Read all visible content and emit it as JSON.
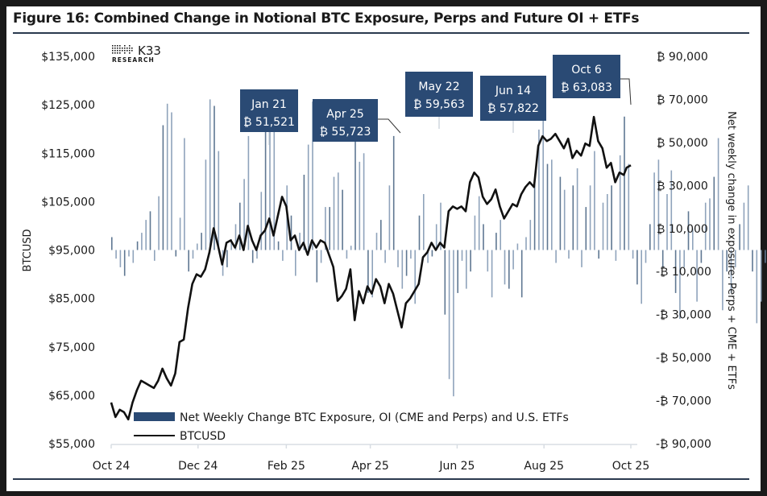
{
  "title": "Figure 16: Combined Change in Notional BTC Exposure, Perps and Future OI + ETFs",
  "logo": {
    "brand": "K33",
    "sub": "RESEARCH"
  },
  "colors": {
    "bar": "#8fa3bb",
    "bar_dark": "#5f7792",
    "line": "#111111",
    "annotation_bg": "#2a4a74",
    "annotation_text": "#ffffff",
    "legend_bar": "#2a4a74",
    "rule": "#2b3a4f",
    "axis": "#d8dde3"
  },
  "chart_data": {
    "type": "bar+line",
    "title": "Figure 16: Combined Change in Notional BTC Exposure, Perps and Future OI + ETFs",
    "xlabel": "",
    "ylabel_left": "BTCUSD",
    "ylabel_right": "Net weekly change in exposure: Perps + CME + ETFs",
    "ylim_left": [
      55000,
      135000
    ],
    "ylim_right": [
      -90000,
      90000
    ],
    "left_ticks": [
      "$135,000",
      "$125,000",
      "$115,000",
      "$105,000",
      "$95,000",
      "$85,000",
      "$75,000",
      "$65,000",
      "$55,000"
    ],
    "left_tick_values": [
      135000,
      125000,
      115000,
      105000,
      95000,
      85000,
      75000,
      65000,
      55000
    ],
    "right_ticks": [
      "₿ 90,000",
      "₿ 70,000",
      "₿ 50,000",
      "₿ 30,000",
      "₿ 10,000",
      "-₿ 10,000",
      "-₿ 30,000",
      "-₿ 50,000",
      "-₿ 70,000",
      "-₿ 90,000"
    ],
    "right_tick_values": [
      90000,
      70000,
      50000,
      30000,
      10000,
      -10000,
      -30000,
      -50000,
      -70000,
      -90000
    ],
    "x_ticks": [
      "Oct 24",
      "Dec 24",
      "Feb 25",
      "Apr 25",
      "Jun 25",
      "Aug 25",
      "Oct 25"
    ],
    "x_tick_days": [
      0,
      61,
      123,
      182,
      243,
      304,
      365
    ],
    "grid": false,
    "legend_position": "bottom-left",
    "legend": [
      {
        "type": "bar",
        "label": "Net Weekly Change BTC Exposure, OI (CME and Perps) and U.S. ETFs"
      },
      {
        "type": "line",
        "label": "BTCUSD"
      }
    ],
    "series": [
      {
        "name": "Net Weekly Change BTC Exposure, OI (CME and Perps) and U.S. ETFs",
        "type": "bar",
        "axis": "right",
        "x_days_start": 0,
        "x_days_step": 3,
        "values": [
          6000,
          -4000,
          -8000,
          -12000,
          -3000,
          -6000,
          4000,
          8000,
          14000,
          18000,
          -5000,
          25000,
          58000,
          68000,
          64000,
          -3000,
          15000,
          52000,
          -10000,
          -4000,
          3000,
          8000,
          42000,
          70000,
          67000,
          46000,
          -12000,
          -8000,
          5000,
          12000,
          22000,
          33000,
          53000,
          -6000,
          -4000,
          27000,
          64000,
          74000,
          60000,
          4000,
          -5000,
          30000,
          16000,
          -12000,
          8000,
          35000,
          49000,
          69000,
          -15000,
          -6000,
          20000,
          20000,
          34000,
          36000,
          28000,
          -4000,
          2000,
          54000,
          41000,
          45000,
          -20000,
          -22000,
          8000,
          14000,
          -6000,
          30000,
          53000,
          -8000,
          -18000,
          -12000,
          -4000,
          -25000,
          16000,
          26000,
          -6000,
          -3000,
          12000,
          22000,
          -30000,
          -60000,
          -68000,
          -20000,
          -5000,
          -18000,
          -10000,
          16000,
          25000,
          12000,
          -10000,
          -22000,
          8000,
          14000,
          -16000,
          -18000,
          -9000,
          3000,
          -22000,
          6000,
          14000,
          32000,
          56000,
          64000,
          40000,
          42000,
          -6000,
          34000,
          28000,
          -4000,
          30000,
          38000,
          -8000,
          20000,
          30000,
          46000,
          -4000,
          22000,
          26000,
          30000,
          -5000,
          44000,
          62000,
          40000,
          -4000,
          -16000,
          -25000,
          -6000,
          12000,
          36000,
          42000,
          -8000,
          26000,
          37000,
          -20000,
          -32000,
          -8000,
          18000,
          10000,
          -24000,
          -6000,
          22000,
          24000,
          34000,
          52000,
          -28000,
          -10000,
          -20000,
          -8000,
          12000,
          22000,
          30000,
          -10000,
          -34000,
          -24000,
          -6000,
          -5000,
          18000,
          21000,
          -16000,
          -26000,
          -4000,
          18000,
          30000,
          40000,
          -8000,
          22000,
          33000,
          15000,
          -30000,
          -40000,
          -20000,
          -6000,
          22000,
          54000,
          62000
        ],
        "unit": "BTC"
      },
      {
        "name": "BTCUSD",
        "type": "line",
        "axis": "left",
        "x_days": [
          0,
          3,
          6,
          9,
          12,
          15,
          18,
          21,
          24,
          27,
          30,
          33,
          36,
          39,
          42,
          45,
          48,
          51,
          54,
          57,
          60,
          63,
          66,
          69,
          72,
          75,
          78,
          81,
          84,
          87,
          90,
          93,
          96,
          99,
          102,
          105,
          108,
          111,
          114,
          117,
          120,
          123,
          126,
          129,
          132,
          135,
          138,
          141,
          144,
          147,
          150,
          153,
          156,
          159,
          162,
          165,
          168,
          171,
          174,
          177,
          180,
          183,
          186,
          189,
          192,
          195,
          198,
          201,
          204,
          207,
          210,
          213,
          216,
          219,
          222,
          225,
          228,
          231,
          234,
          237,
          240,
          243,
          246,
          249,
          252,
          255,
          258,
          261,
          264,
          267,
          270,
          273,
          276,
          279,
          282,
          285,
          288,
          291,
          294,
          297,
          300,
          303,
          306,
          309,
          312,
          315,
          318,
          321,
          324,
          327,
          330,
          333,
          336,
          339,
          342,
          345,
          348,
          351,
          354,
          357,
          360,
          362,
          365
        ],
        "values": [
          63500,
          60500,
          62000,
          61500,
          60000,
          63500,
          66000,
          68000,
          67500,
          67000,
          66500,
          68000,
          70500,
          68500,
          67000,
          69500,
          76000,
          76500,
          83000,
          88000,
          90000,
          89500,
          91000,
          94500,
          99500,
          96000,
          92000,
          96500,
          97000,
          95500,
          98000,
          95000,
          100000,
          97000,
          95000,
          98000,
          99000,
          101500,
          98000,
          102000,
          106000,
          104000,
          97000,
          98000,
          95000,
          96500,
          94000,
          97000,
          95500,
          97000,
          96500,
          94000,
          91500,
          84500,
          85500,
          87000,
          91000,
          80500,
          86500,
          84000,
          87500,
          86000,
          89000,
          87500,
          84000,
          88000,
          86000,
          82500,
          79000,
          84000,
          85000,
          86500,
          88000,
          93500,
          94500,
          96500,
          95000,
          96500,
          95500,
          103000,
          104000,
          103500,
          104000,
          103000,
          109000,
          111000,
          110000,
          106000,
          104500,
          105500,
          107500,
          104000,
          101500,
          103000,
          104500,
          104000,
          106500,
          108000,
          109000,
          108000,
          116500,
          118500,
          117500,
          118000,
          119000,
          117500,
          116000,
          118000,
          114000,
          115500,
          114500,
          117000,
          116500,
          122500,
          117500,
          116000,
          112000,
          113000,
          109000,
          111000,
          110500,
          112000,
          112500,
          115500,
          116000,
          117000,
          115000,
          112500,
          108500,
          111000,
          114500,
          118500,
          122500,
          124500,
          123500
        ]
      }
    ],
    "annotations": [
      {
        "date": "Jan 21",
        "value": "₿ 51,521",
        "x_day": 112
      },
      {
        "date": "Apr 25",
        "value": "₿ 55,723",
        "x_day": 206
      },
      {
        "date": "May 22",
        "value": "₿ 59,563",
        "x_day": 233
      },
      {
        "date": "Jun 14",
        "value": "₿ 57,822",
        "x_day": 256
      },
      {
        "date": "Oct 6",
        "value": "₿ 63,083",
        "x_day": 370
      }
    ]
  }
}
